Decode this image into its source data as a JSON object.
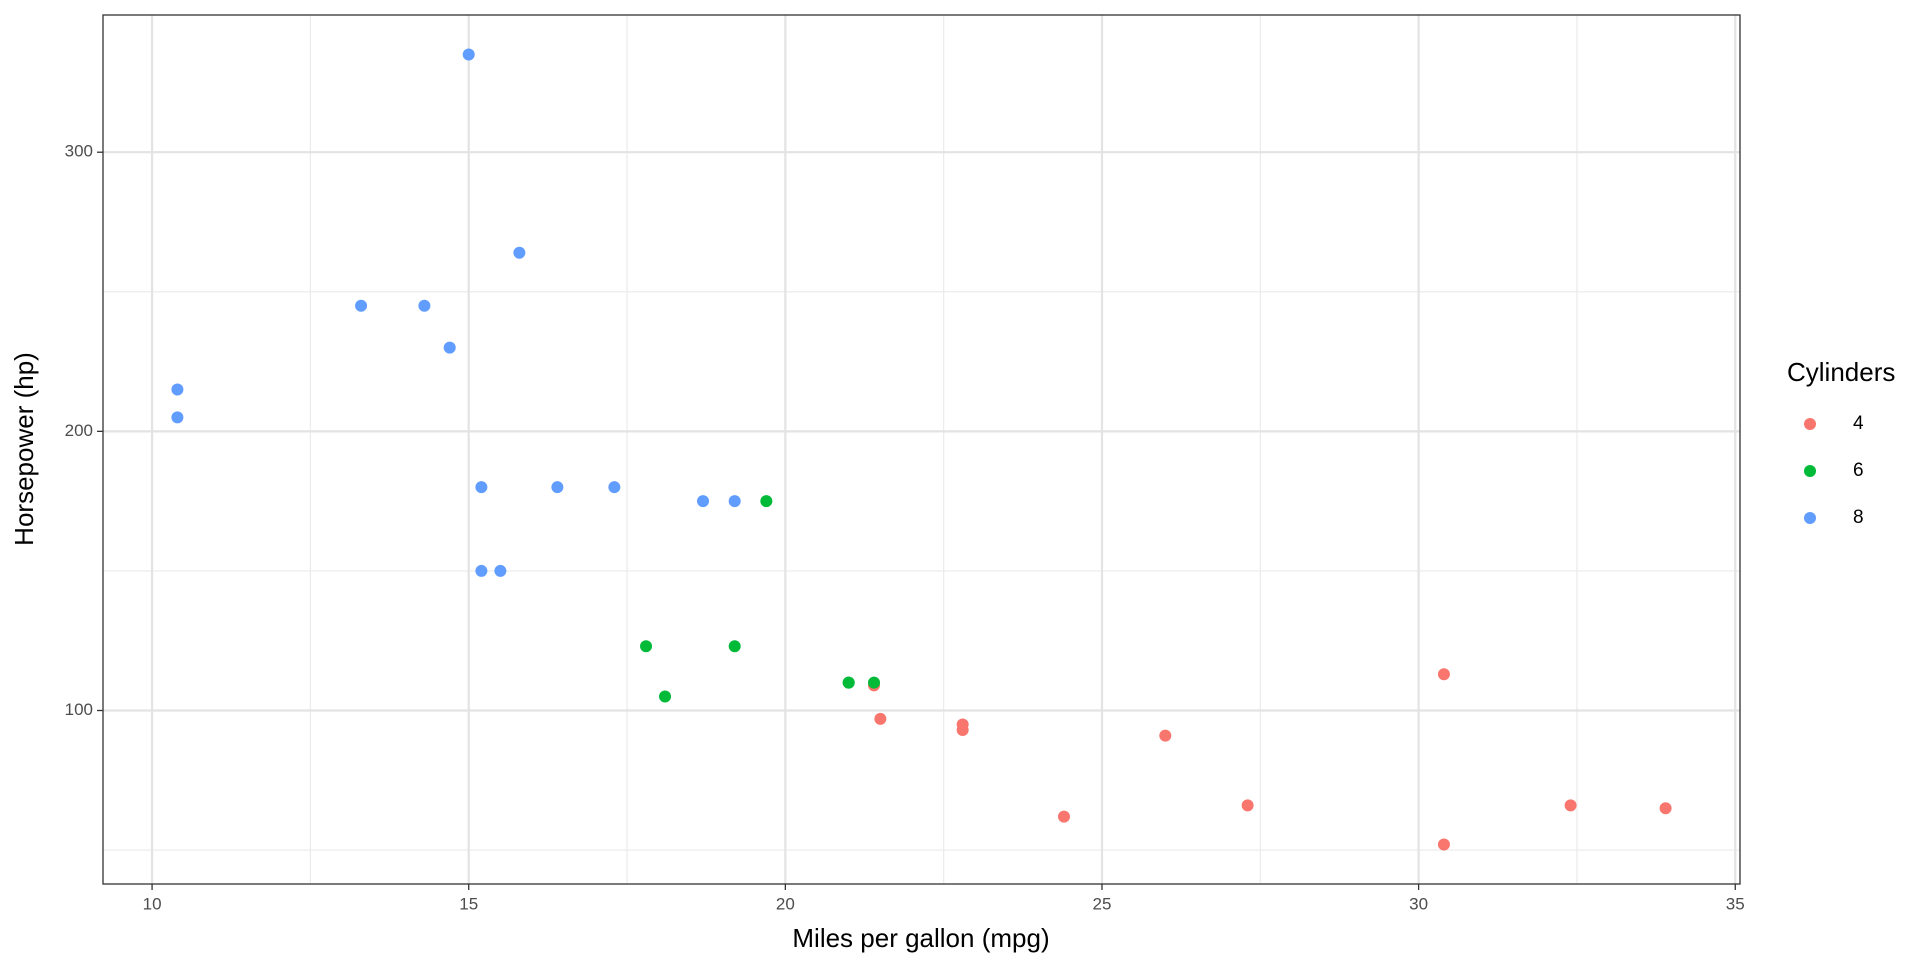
{
  "chart_data": {
    "type": "scatter",
    "x_label": "Miles per gallon (mpg)",
    "y_label": "Horsepower (hp)",
    "legend_title": "Cylinders",
    "legend_position": "right",
    "grid": true,
    "xlim": [
      9.225,
      35.075
    ],
    "xticks": [
      10,
      15,
      20,
      25,
      30,
      35
    ],
    "ylim": [
      37.85,
      349.15
    ],
    "yticks": [
      100,
      200,
      300
    ],
    "series": [
      {
        "name": "4",
        "color": "#F8766D",
        "x": [
          22.8,
          24.4,
          22.8,
          32.4,
          30.4,
          33.9,
          21.5,
          27.3,
          26.0,
          30.4,
          21.4
        ],
        "values": [
          93,
          62,
          95,
          66,
          52,
          65,
          97,
          66,
          91,
          113,
          109
        ]
      },
      {
        "name": "6",
        "color": "#00BA38",
        "x": [
          21.0,
          21.0,
          21.4,
          18.1,
          19.2,
          17.8,
          19.7
        ],
        "values": [
          110,
          110,
          110,
          105,
          123,
          123,
          175
        ]
      },
      {
        "name": "8",
        "color": "#619CFF",
        "x": [
          18.7,
          14.3,
          16.4,
          17.3,
          15.2,
          10.4,
          10.4,
          14.7,
          15.5,
          15.2,
          13.3,
          19.2,
          15.8,
          15.0
        ],
        "values": [
          175,
          245,
          180,
          180,
          180,
          205,
          215,
          230,
          150,
          150,
          245,
          175,
          264,
          335
        ]
      }
    ]
  }
}
